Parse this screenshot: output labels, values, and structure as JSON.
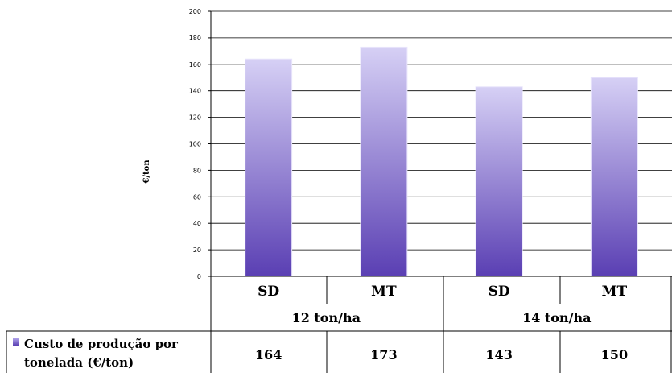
{
  "chart_data": {
    "type": "bar",
    "ylabel": "€/ton",
    "ylim": [
      0,
      200
    ],
    "yticks": [
      0,
      20,
      40,
      60,
      80,
      100,
      120,
      140,
      160,
      180,
      200
    ],
    "grid": true,
    "groups": [
      "12 ton/ha",
      "14 ton/ha"
    ],
    "categories": [
      "SD",
      "MT",
      "SD",
      "MT"
    ],
    "series": [
      {
        "name": "Custo de produção por tonelada (€/ton)",
        "values": [
          164,
          173,
          143,
          150
        ]
      }
    ],
    "legend_position": "table-left",
    "colors": {
      "bar_top": "#d6d0f5",
      "bar_bottom": "#5a3fb3"
    }
  },
  "legend_lines": [
    "Custo de produção por",
    "tonelada (€/ton)"
  ]
}
